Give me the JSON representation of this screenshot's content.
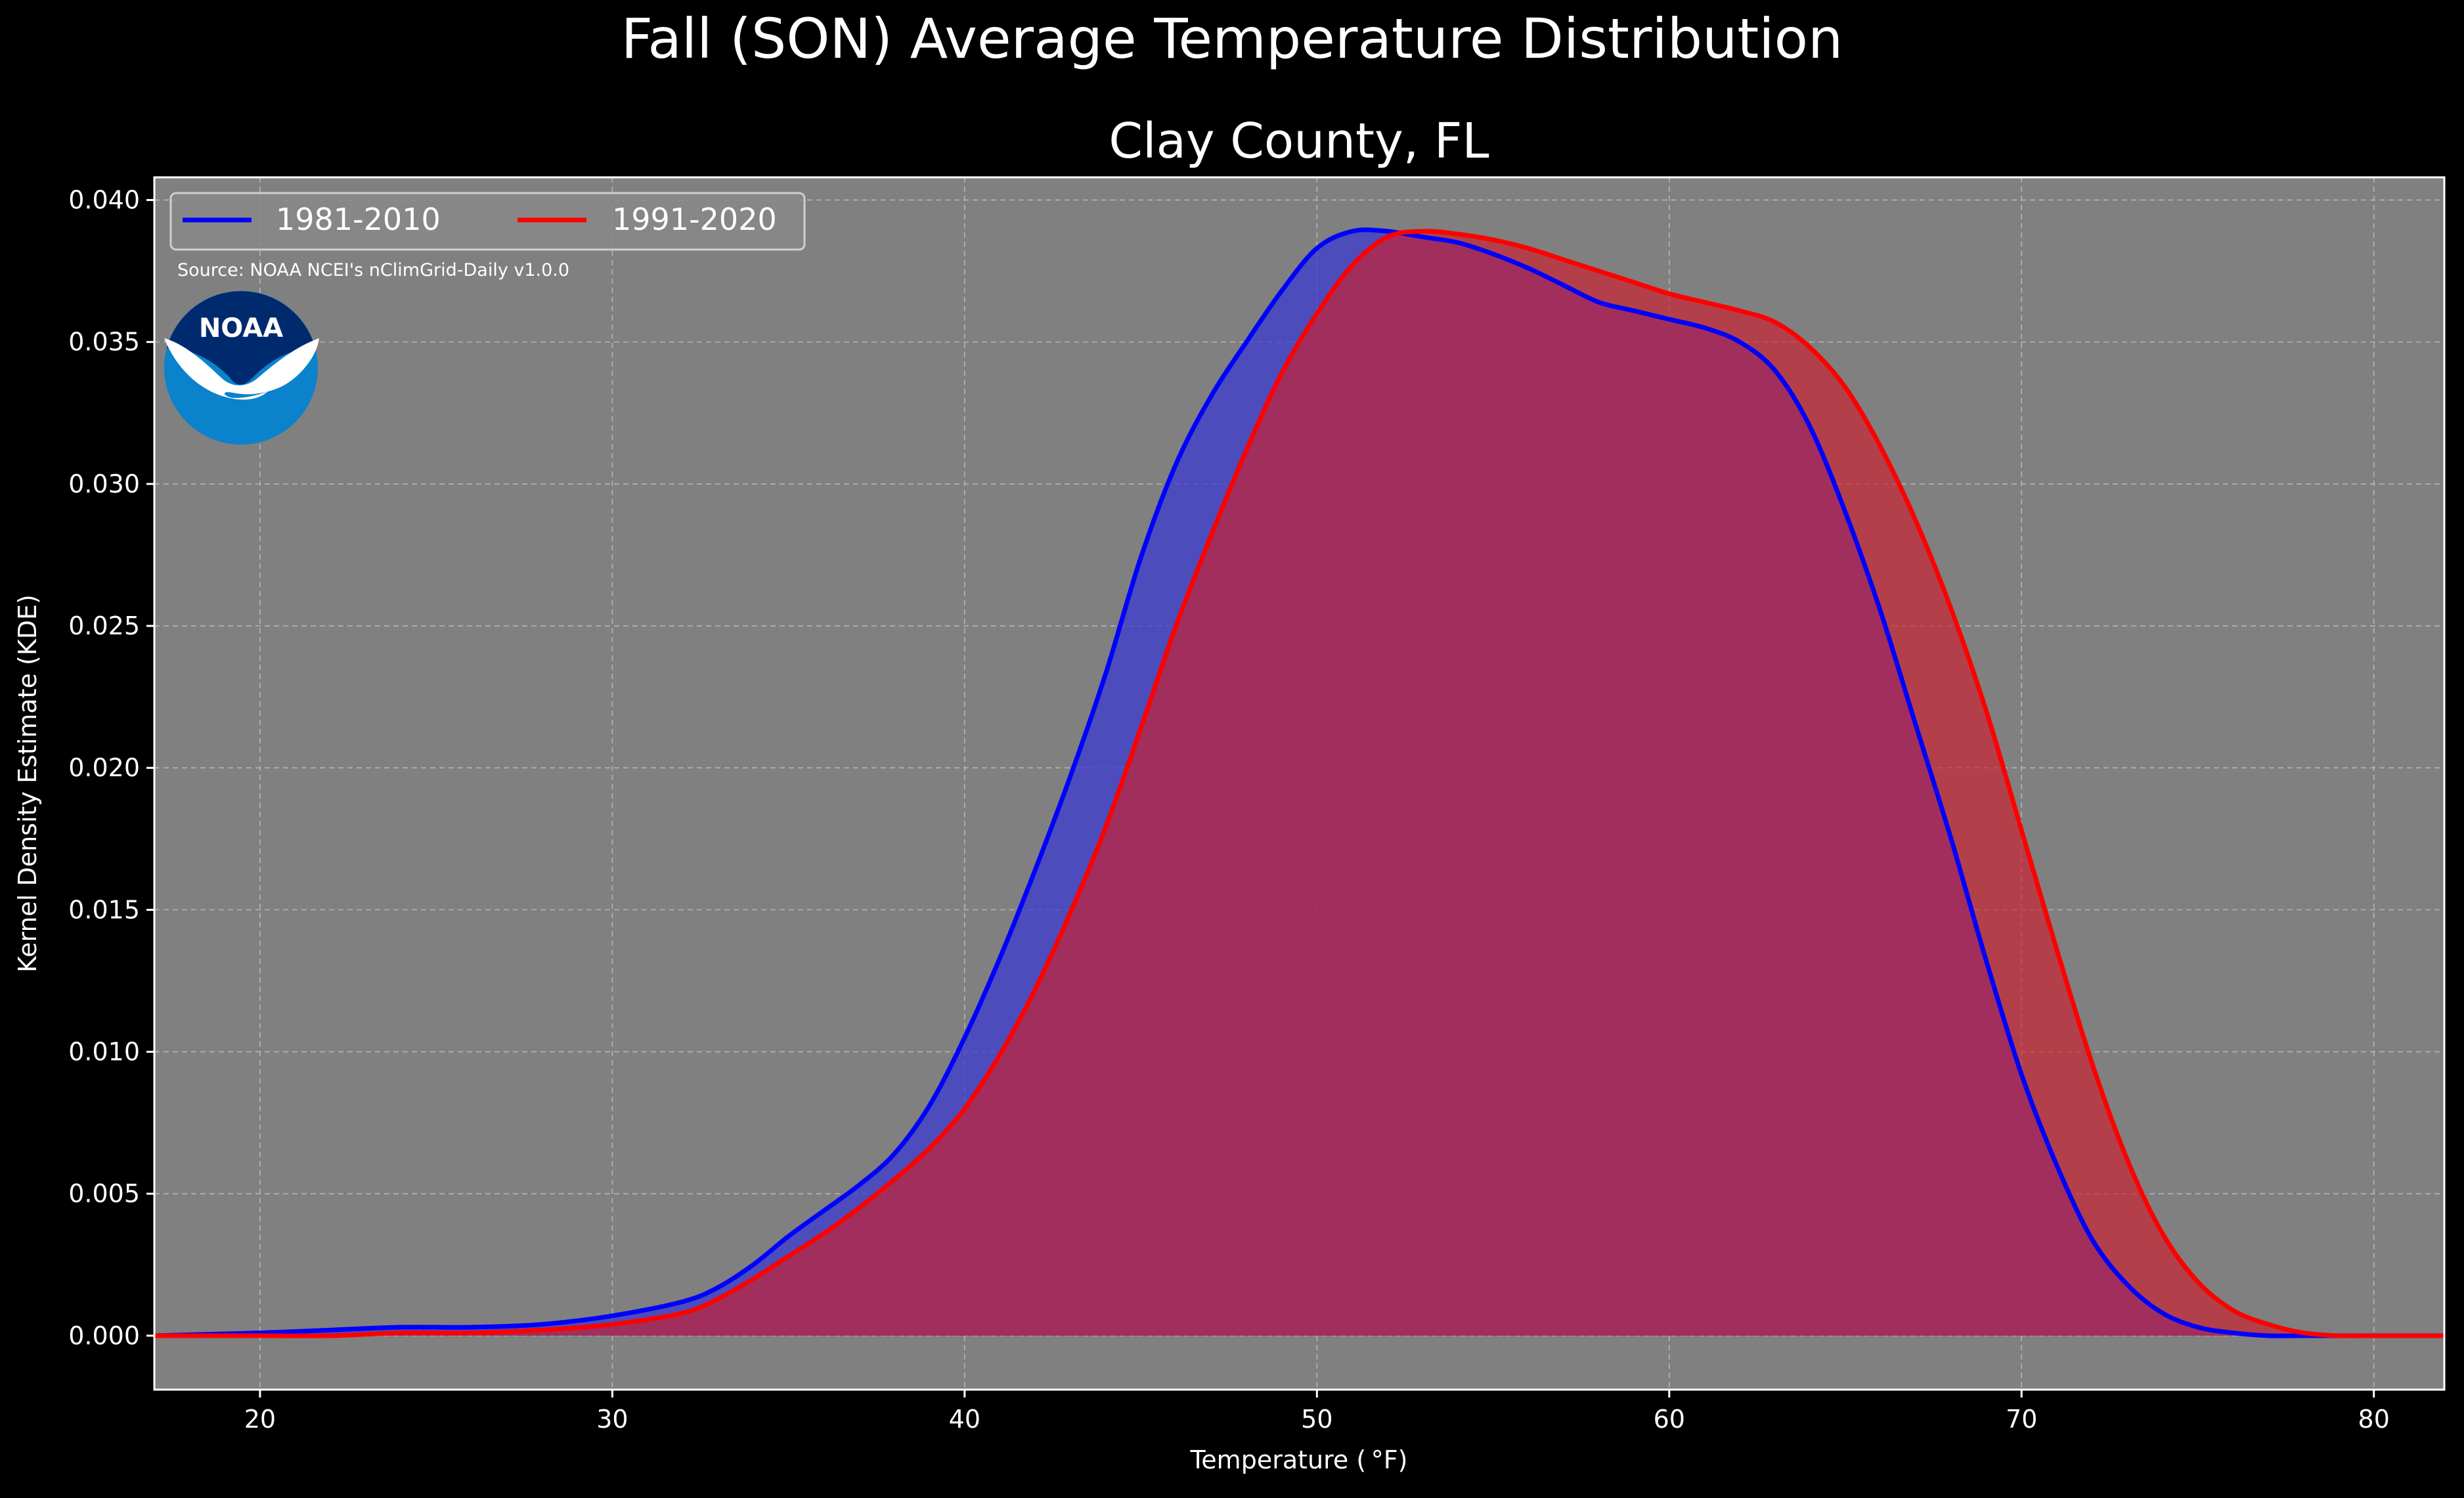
{
  "chart_data": {
    "type": "area",
    "suptitle": "Fall (SON) Average Temperature Distribution",
    "title": "Clay County, FL",
    "xlabel": "Temperature ($^\\circ$F)",
    "xlabel_display": "Temperature ( °F)",
    "ylabel": "Kernel Density Estimate (KDE)",
    "xlim": [
      17,
      82
    ],
    "ylim": [
      -0.0019,
      0.0408
    ],
    "xticks": [
      20,
      30,
      40,
      50,
      60,
      70,
      80
    ],
    "yticks": [
      0.0,
      0.005,
      0.01,
      0.015,
      0.02,
      0.025,
      0.03,
      0.035,
      0.04
    ],
    "ytick_labels": [
      "0.000",
      "0.005",
      "0.010",
      "0.015",
      "0.020",
      "0.025",
      "0.030",
      "0.035",
      "0.040"
    ],
    "grid": true,
    "legend_location": "top-left",
    "source_note": "Source: NOAA NCEI's nClimGrid-Daily v1.0.0",
    "logo_text": "NOAA",
    "series": [
      {
        "name": "1981-2010",
        "color": "#0000ff",
        "fill": "#3b3bd0",
        "x": [
          17,
          20,
          22,
          24,
          26,
          28,
          30,
          32,
          33,
          34,
          35,
          36,
          37,
          38,
          39,
          40,
          41,
          42,
          43,
          44,
          45,
          46,
          47,
          48,
          49,
          50,
          51,
          52,
          53,
          54,
          55,
          56,
          57,
          58,
          59,
          60,
          61,
          62,
          63,
          64,
          65,
          66,
          67,
          68,
          69,
          70,
          71,
          72,
          73,
          74,
          75,
          76,
          77,
          78,
          79,
          80,
          82
        ],
        "values": [
          0.0,
          0.0001,
          0.0002,
          0.0003,
          0.0003,
          0.0004,
          0.0007,
          0.0012,
          0.0017,
          0.0025,
          0.0035,
          0.0044,
          0.0053,
          0.0064,
          0.0081,
          0.0105,
          0.0133,
          0.0164,
          0.0197,
          0.0233,
          0.0274,
          0.0307,
          0.0331,
          0.035,
          0.0368,
          0.0383,
          0.0389,
          0.0389,
          0.0387,
          0.0385,
          0.0381,
          0.0376,
          0.037,
          0.0364,
          0.0361,
          0.0358,
          0.0355,
          0.035,
          0.034,
          0.032,
          0.029,
          0.0255,
          0.0215,
          0.0175,
          0.0132,
          0.0092,
          0.006,
          0.0034,
          0.0018,
          0.0008,
          0.0003,
          0.0001,
          0.0,
          0.0,
          0.0,
          0.0,
          0.0
        ]
      },
      {
        "name": "1991-2020",
        "color": "#ff0000",
        "fill": "#cc2030",
        "x": [
          17,
          20,
          22,
          24,
          26,
          28,
          30,
          32,
          33,
          34,
          35,
          36,
          37,
          38,
          39,
          40,
          41,
          42,
          43,
          44,
          45,
          46,
          47,
          48,
          49,
          50,
          51,
          52,
          53,
          54,
          55,
          56,
          57,
          58,
          59,
          60,
          61,
          62,
          63,
          64,
          65,
          66,
          67,
          68,
          69,
          70,
          71,
          72,
          73,
          74,
          75,
          76,
          77,
          78,
          79,
          80,
          82
        ],
        "values": [
          0.0,
          0.0,
          0.0,
          0.0001,
          0.0001,
          0.0002,
          0.0004,
          0.0008,
          0.0013,
          0.002,
          0.0028,
          0.0036,
          0.0045,
          0.0055,
          0.0066,
          0.008,
          0.0099,
          0.0122,
          0.0149,
          0.0179,
          0.0214,
          0.025,
          0.0282,
          0.0312,
          0.0339,
          0.036,
          0.0377,
          0.0387,
          0.0389,
          0.0388,
          0.0386,
          0.0383,
          0.0379,
          0.0375,
          0.0371,
          0.0367,
          0.0364,
          0.0361,
          0.0357,
          0.0348,
          0.0334,
          0.0313,
          0.0287,
          0.0256,
          0.022,
          0.0178,
          0.0136,
          0.0096,
          0.0062,
          0.0036,
          0.0019,
          0.0009,
          0.0004,
          0.0001,
          0.0,
          0.0,
          0.0
        ]
      }
    ]
  }
}
